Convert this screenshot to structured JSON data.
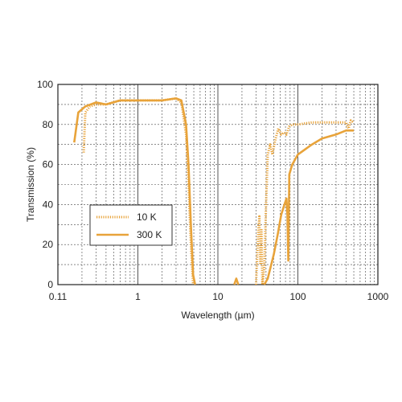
{
  "chart_data": {
    "type": "line",
    "xlabel": "Wavelength (µm)",
    "ylabel": "Transmission (%)",
    "x_scale": "log",
    "xlim": [
      0.1,
      1000
    ],
    "ylim": [
      0,
      100
    ],
    "grid": true,
    "legend_position": "middle-left",
    "x_tick_labels": [
      "0.11",
      "1",
      "10",
      "100",
      "1000"
    ],
    "y_tick_labels": [
      "0",
      "20",
      "40",
      "60",
      "80",
      "100"
    ],
    "series_color": "#e8a33a",
    "series": [
      {
        "name": "10 K",
        "style": "dotted",
        "segments": [
          [
            [
              0.21,
              66
            ],
            [
              0.22,
              86
            ],
            [
              0.25,
              89
            ],
            [
              0.3,
              90
            ],
            [
              0.4,
              90
            ],
            [
              0.6,
              92
            ],
            [
              1,
              92
            ],
            [
              2,
              92
            ],
            [
              3,
              93
            ],
            [
              3.5,
              91
            ],
            [
              4,
              75
            ],
            [
              4.3,
              50
            ],
            [
              4.6,
              20
            ],
            [
              4.9,
              0
            ]
          ],
          [
            [
              30,
              0
            ],
            [
              32,
              28
            ],
            [
              33,
              34
            ],
            [
              34,
              10
            ],
            [
              35,
              28
            ],
            [
              36,
              0
            ],
            [
              38,
              8
            ],
            [
              40,
              40
            ],
            [
              42,
              65
            ],
            [
              45,
              70
            ],
            [
              48,
              65
            ],
            [
              52,
              72
            ],
            [
              57,
              78
            ],
            [
              62,
              75
            ],
            [
              67,
              76
            ],
            [
              72,
              75
            ],
            [
              78,
              79
            ],
            [
              85,
              80
            ],
            [
              100,
              80
            ],
            [
              150,
              81
            ],
            [
              200,
              81
            ],
            [
              300,
              81
            ],
            [
              400,
              81
            ],
            [
              430,
              78
            ],
            [
              460,
              82
            ],
            [
              500,
              81
            ]
          ]
        ]
      },
      {
        "name": "300 K",
        "style": "solid",
        "segments": [
          [
            [
              0.16,
              71
            ],
            [
              0.18,
              86
            ],
            [
              0.22,
              89
            ],
            [
              0.3,
              91
            ],
            [
              0.4,
              90
            ],
            [
              0.6,
              92
            ],
            [
              1,
              92
            ],
            [
              2,
              92
            ],
            [
              3,
              93
            ],
            [
              3.5,
              92
            ],
            [
              4,
              80
            ],
            [
              4.3,
              60
            ],
            [
              4.6,
              30
            ],
            [
              4.9,
              5
            ],
            [
              5.2,
              0
            ]
          ],
          [
            [
              16,
              0
            ],
            [
              17,
              3
            ],
            [
              18,
              0
            ]
          ],
          [
            [
              38,
              0
            ],
            [
              42,
              3
            ],
            [
              50,
              15
            ],
            [
              56,
              25
            ],
            [
              62,
              35
            ],
            [
              68,
              40
            ],
            [
              72,
              43
            ],
            [
              74,
              35
            ],
            [
              76,
              12
            ],
            [
              78,
              55
            ],
            [
              85,
              60
            ],
            [
              100,
              65
            ],
            [
              150,
              70
            ],
            [
              200,
              73
            ],
            [
              300,
              75
            ],
            [
              400,
              77
            ],
            [
              500,
              77
            ]
          ]
        ]
      }
    ]
  }
}
